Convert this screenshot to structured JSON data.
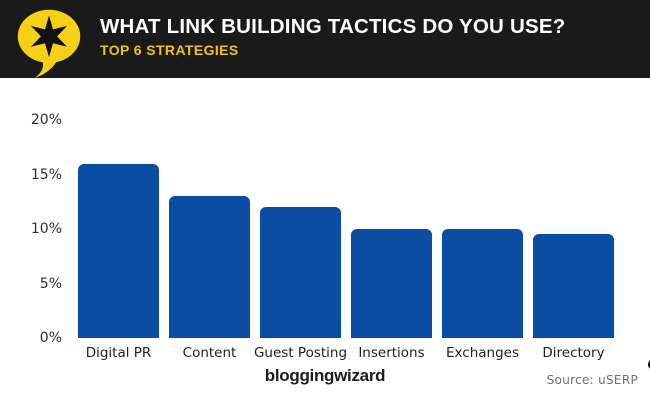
{
  "header": {
    "title": "WHAT LINK BUILDING TACTICS DO YOU USE?",
    "subtitle": "TOP 6 STRATEGIES",
    "colors": {
      "background": "#1a1a1a",
      "title": "#ffffff",
      "subtitle": "#f2c312",
      "logo_yellow": "#f6d017",
      "logo_star": "#111111"
    }
  },
  "chart_data": {
    "type": "bar",
    "title": "WHAT LINK BUILDING TACTICS DO YOU USE?",
    "subtitle": "TOP 6 STRATEGIES",
    "categories": [
      "Digital PR",
      "Content",
      "Guest Posting",
      "Insertions",
      "Exchanges",
      "Directory"
    ],
    "values": [
      16,
      13,
      12,
      10,
      10,
      9.5
    ],
    "unit": "%",
    "xlabel": "",
    "ylabel": "",
    "ylim": [
      0,
      20
    ],
    "yticks": [
      "20%",
      "15%",
      "10%",
      "5%",
      "0%"
    ],
    "grid": false,
    "legend": false,
    "bar_color": "#0b4da3"
  },
  "footer": {
    "brand": "bloggingwizard",
    "brand_badge_glyph": "✦",
    "source": "Source: uSERP"
  }
}
